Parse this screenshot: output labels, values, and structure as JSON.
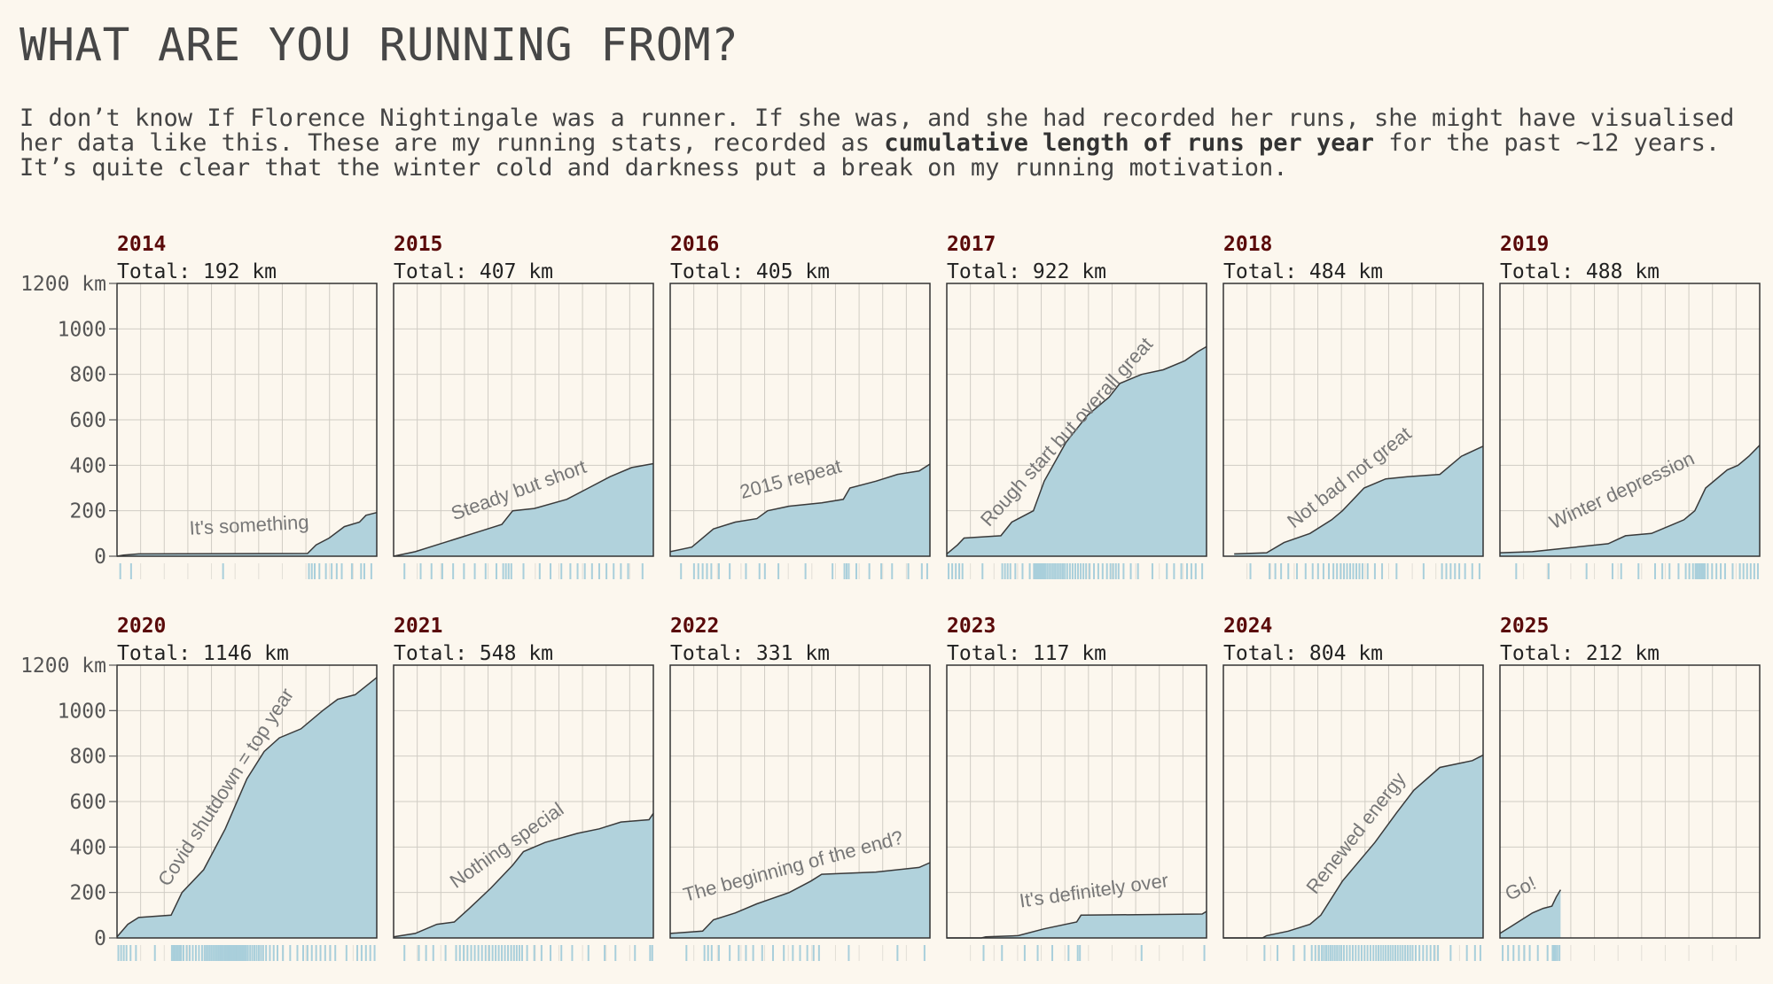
{
  "header": {
    "title": "WHAT ARE YOU RUNNING FROM?",
    "description_pre": "I don’t know If Florence Nightingale was a runner. If she was, and she had recorded her runs, she might have visualised her data like this. These are my running stats, recorded as ",
    "description_bold": "cumulative length of runs per year",
    "description_post": " for the past ~12 years. It’s quite clear that the winter cold and darkness put a break on my running motivation."
  },
  "colors": {
    "fill": "#b1d2dc",
    "line": "#3a3a3a",
    "rug": "#a9cfdb",
    "year": "#5a0a0a",
    "grid": "#d0ccc4",
    "annotation": "#777777"
  },
  "chart_data": {
    "type": "area",
    "x_unit": "month of year",
    "xlim": [
      0,
      12
    ],
    "ylim": [
      0,
      1200
    ],
    "y_ticks": [
      "0",
      "200",
      "400",
      "600",
      "800",
      "1000",
      "1200 km"
    ],
    "grid": true,
    "panels": [
      {
        "year": "2014",
        "total": "Total: 192 km",
        "annotation": "It's something",
        "points": [
          [
            0,
            0
          ],
          [
            0.3,
            5
          ],
          [
            1,
            10
          ],
          [
            8.8,
            12
          ],
          [
            9.2,
            50
          ],
          [
            9.8,
            80
          ],
          [
            10.5,
            130
          ],
          [
            11.2,
            150
          ],
          [
            11.5,
            180
          ],
          [
            12,
            192
          ]
        ]
      },
      {
        "year": "2015",
        "total": "Total: 407 km",
        "annotation": "Steady but short",
        "points": [
          [
            0,
            0
          ],
          [
            1,
            20
          ],
          [
            2,
            50
          ],
          [
            3,
            80
          ],
          [
            4,
            110
          ],
          [
            5,
            140
          ],
          [
            5.5,
            200
          ],
          [
            6.5,
            210
          ],
          [
            8,
            250
          ],
          [
            9,
            300
          ],
          [
            10,
            350
          ],
          [
            11,
            390
          ],
          [
            12,
            407
          ]
        ]
      },
      {
        "year": "2016",
        "total": "Total: 405 km",
        "annotation": "2015 repeat",
        "points": [
          [
            0,
            20
          ],
          [
            1,
            40
          ],
          [
            2,
            120
          ],
          [
            3,
            150
          ],
          [
            4,
            165
          ],
          [
            4.5,
            200
          ],
          [
            5.5,
            220
          ],
          [
            7,
            235
          ],
          [
            8,
            250
          ],
          [
            8.3,
            300
          ],
          [
            9.5,
            330
          ],
          [
            10.5,
            360
          ],
          [
            11.5,
            375
          ],
          [
            12,
            405
          ]
        ]
      },
      {
        "year": "2017",
        "total": "Total: 922 km",
        "annotation": "Rough start but overall great",
        "points": [
          [
            0,
            10
          ],
          [
            0.5,
            50
          ],
          [
            0.8,
            80
          ],
          [
            2.5,
            90
          ],
          [
            3,
            150
          ],
          [
            4,
            200
          ],
          [
            4.5,
            330
          ],
          [
            5.5,
            500
          ],
          [
            6.5,
            620
          ],
          [
            7.5,
            700
          ],
          [
            8,
            760
          ],
          [
            9,
            800
          ],
          [
            10,
            820
          ],
          [
            11,
            860
          ],
          [
            11.6,
            900
          ],
          [
            12,
            922
          ]
        ]
      },
      {
        "year": "2018",
        "total": "Total: 484 km",
        "annotation": "Not bad not great",
        "points": [
          [
            0.5,
            10
          ],
          [
            2,
            15
          ],
          [
            2.8,
            60
          ],
          [
            4,
            100
          ],
          [
            5,
            160
          ],
          [
            5.5,
            200
          ],
          [
            6.5,
            300
          ],
          [
            7.5,
            340
          ],
          [
            8.5,
            350
          ],
          [
            10,
            360
          ],
          [
            11,
            440
          ],
          [
            12,
            484
          ]
        ]
      },
      {
        "year": "2019",
        "total": "Total: 488 km",
        "annotation": "Winter depression",
        "points": [
          [
            0,
            15
          ],
          [
            1.5,
            20
          ],
          [
            3,
            35
          ],
          [
            5,
            55
          ],
          [
            5.8,
            90
          ],
          [
            7,
            100
          ],
          [
            8,
            140
          ],
          [
            8.5,
            160
          ],
          [
            9,
            200
          ],
          [
            9.5,
            300
          ],
          [
            10.5,
            380
          ],
          [
            11,
            400
          ],
          [
            11.5,
            440
          ],
          [
            12,
            488
          ]
        ]
      },
      {
        "year": "2020",
        "total": "Total: 1146 km",
        "annotation": "Covid shutdown = top year",
        "points": [
          [
            0,
            5
          ],
          [
            0.5,
            60
          ],
          [
            1,
            90
          ],
          [
            2.5,
            100
          ],
          [
            3,
            200
          ],
          [
            4,
            300
          ],
          [
            5,
            480
          ],
          [
            6,
            700
          ],
          [
            6.8,
            820
          ],
          [
            7.5,
            880
          ],
          [
            8.5,
            920
          ],
          [
            9.5,
            1000
          ],
          [
            10.2,
            1050
          ],
          [
            11,
            1070
          ],
          [
            12,
            1146
          ]
        ]
      },
      {
        "year": "2021",
        "total": "Total: 548 km",
        "annotation": "Nothing special",
        "points": [
          [
            0,
            5
          ],
          [
            1,
            20
          ],
          [
            2,
            60
          ],
          [
            2.8,
            70
          ],
          [
            3.5,
            130
          ],
          [
            4.5,
            220
          ],
          [
            5.5,
            320
          ],
          [
            6,
            380
          ],
          [
            7,
            420
          ],
          [
            8.5,
            460
          ],
          [
            9.5,
            480
          ],
          [
            10.5,
            510
          ],
          [
            11.8,
            520
          ],
          [
            12,
            548
          ]
        ]
      },
      {
        "year": "2022",
        "total": "Total: 331 km",
        "annotation": "The beginning of the end?",
        "points": [
          [
            0,
            20
          ],
          [
            1.5,
            30
          ],
          [
            2,
            80
          ],
          [
            3,
            110
          ],
          [
            4,
            150
          ],
          [
            5.5,
            200
          ],
          [
            6.5,
            250
          ],
          [
            7,
            280
          ],
          [
            9.5,
            290
          ],
          [
            11.5,
            310
          ],
          [
            12,
            331
          ]
        ]
      },
      {
        "year": "2023",
        "total": "Total: 117 km",
        "annotation": "It's definitely over",
        "points": [
          [
            0,
            0
          ],
          [
            1.6,
            0
          ],
          [
            1.8,
            5
          ],
          [
            3.3,
            10
          ],
          [
            4.5,
            40
          ],
          [
            6,
            70
          ],
          [
            6.2,
            100
          ],
          [
            11.8,
            105
          ],
          [
            12,
            117
          ]
        ]
      },
      {
        "year": "2024",
        "total": "Total: 804 km",
        "annotation": "Renewed energy",
        "points": [
          [
            0,
            0
          ],
          [
            1.8,
            0
          ],
          [
            2,
            10
          ],
          [
            3,
            30
          ],
          [
            4,
            60
          ],
          [
            4.5,
            100
          ],
          [
            5.5,
            250
          ],
          [
            7,
            420
          ],
          [
            8,
            550
          ],
          [
            8.8,
            650
          ],
          [
            10,
            750
          ],
          [
            11,
            770
          ],
          [
            11.5,
            780
          ],
          [
            12,
            804
          ]
        ]
      },
      {
        "year": "2025",
        "total": "Total: 212 km",
        "annotation": "Go!",
        "points": [
          [
            0,
            20
          ],
          [
            0.5,
            50
          ],
          [
            1,
            80
          ],
          [
            1.5,
            110
          ],
          [
            2,
            130
          ],
          [
            2.4,
            140
          ],
          [
            2.6,
            180
          ],
          [
            2.8,
            212
          ]
        ]
      }
    ]
  }
}
